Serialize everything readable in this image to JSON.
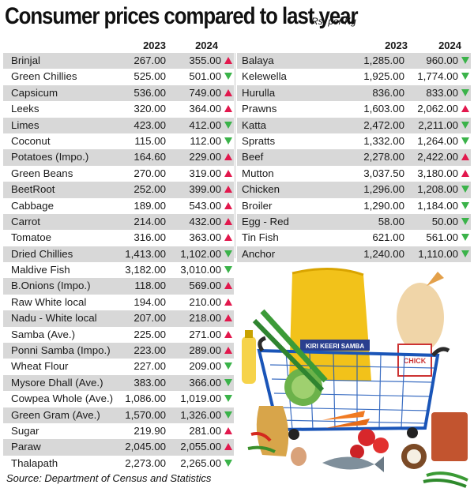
{
  "title": "Consumer prices compared to last year",
  "unit": "Rs. per Kg",
  "years": {
    "y1": "2023",
    "y2": "2024"
  },
  "colors": {
    "up": "#e2184d",
    "down": "#3bb34a",
    "shade": "#d8d8d8"
  },
  "left_rows": [
    {
      "name": "Brinjal",
      "v2023": "267.00",
      "v2024": "355.00",
      "trend": "up"
    },
    {
      "name": "Green Chillies",
      "v2023": "525.00",
      "v2024": "501.00",
      "trend": "down"
    },
    {
      "name": "Capsicum",
      "v2023": "536.00",
      "v2024": "749.00",
      "trend": "up"
    },
    {
      "name": "Leeks",
      "v2023": "320.00",
      "v2024": "364.00",
      "trend": "up"
    },
    {
      "name": "Limes",
      "v2023": "423.00",
      "v2024": "412.00",
      "trend": "down"
    },
    {
      "name": "Coconut",
      "v2023": "115.00",
      "v2024": "112.00",
      "trend": "down"
    },
    {
      "name": "Potatoes (Impo.)",
      "v2023": "164.60",
      "v2024": "229.00",
      "trend": "up"
    },
    {
      "name": "Green Beans",
      "v2023": "270.00",
      "v2024": "319.00",
      "trend": "up"
    },
    {
      "name": "BeetRoot",
      "v2023": "252.00",
      "v2024": "399.00",
      "trend": "up"
    },
    {
      "name": "Cabbage",
      "v2023": "189.00",
      "v2024": "543.00",
      "trend": "up"
    },
    {
      "name": "Carrot",
      "v2023": "214.00",
      "v2024": "432.00",
      "trend": "up"
    },
    {
      "name": "Tomatoe",
      "v2023": "316.00",
      "v2024": "363.00",
      "trend": "up"
    },
    {
      "name": "Dried Chillies",
      "v2023": "1,413.00",
      "v2024": "1,102.00",
      "trend": "down"
    },
    {
      "name": "Maldive Fish",
      "v2023": "3,182.00",
      "v2024": "3,010.00",
      "trend": "down"
    },
    {
      "name": "B.Onions (Impo.)",
      "v2023": "118.00",
      "v2024": "569.00",
      "trend": "up"
    },
    {
      "name": "Raw White local",
      "v2023": "194.00",
      "v2024": "210.00",
      "trend": "up"
    },
    {
      "name": "Nadu - White local",
      "v2023": "207.00",
      "v2024": "218.00",
      "trend": "up"
    },
    {
      "name": "Samba (Ave.)",
      "v2023": "225.00",
      "v2024": "271.00",
      "trend": "up"
    },
    {
      "name": "Ponni Samba (Impo.)",
      "v2023": "223.00",
      "v2024": "289.00",
      "trend": "up"
    },
    {
      "name": "Wheat Flour",
      "v2023": "227.00",
      "v2024": "209.00",
      "trend": "down"
    },
    {
      "name": "Mysore Dhall (Ave.)",
      "v2023": "383.00",
      "v2024": "366.00",
      "trend": "down"
    },
    {
      "name": "Cowpea Whole (Ave.)",
      "v2023": "1,086.00",
      "v2024": "1,019.00",
      "trend": "down"
    },
    {
      "name": "Green Gram (Ave.)",
      "v2023": "1,570.00",
      "v2024": "1,326.00",
      "trend": "down"
    },
    {
      "name": "Sugar",
      "v2023": "219.90",
      "v2024": "281.00",
      "trend": "up"
    },
    {
      "name": "Paraw",
      "v2023": "2,045.00",
      "v2024": "2,055.00",
      "trend": "up"
    },
    {
      "name": "Thalapath",
      "v2023": "2,273.00",
      "v2024": "2,265.00",
      "trend": "down"
    }
  ],
  "right_rows": [
    {
      "name": "Balaya",
      "v2023": "1,285.00",
      "v2024": "960.00",
      "trend": "down"
    },
    {
      "name": "Kelewella",
      "v2023": "1,925.00",
      "v2024": "1,774.00",
      "trend": "down"
    },
    {
      "name": "Hurulla",
      "v2023": "836.00",
      "v2024": "833.00",
      "trend": "down"
    },
    {
      "name": "Prawns",
      "v2023": "1,603.00",
      "v2024": "2,062.00",
      "trend": "up"
    },
    {
      "name": "Katta",
      "v2023": "2,472.00",
      "v2024": "2,211.00",
      "trend": "down"
    },
    {
      "name": "Spratts",
      "v2023": "1,332.00",
      "v2024": "1,264.00",
      "trend": "down"
    },
    {
      "name": "Beef",
      "v2023": "2,278.00",
      "v2024": "2,422.00",
      "trend": "up"
    },
    {
      "name": "Mutton",
      "v2023": "3,037.50",
      "v2024": "3,180.00",
      "trend": "up"
    },
    {
      "name": "Chicken",
      "v2023": "1,296.00",
      "v2024": "1,208.00",
      "trend": "down"
    },
    {
      "name": "Broiler",
      "v2023": "1,290.00",
      "v2024": "1,184.00",
      "trend": "down"
    },
    {
      "name": "Egg - Red",
      "v2023": "58.00",
      "v2024": "50.00",
      "trend": "down"
    },
    {
      "name": "Tin Fish",
      "v2023": "621.00",
      "v2024": "561.00",
      "trend": "down"
    },
    {
      "name": "Anchor",
      "v2023": "1,240.00",
      "v2024": "1,110.00",
      "trend": "down"
    }
  ],
  "illustration": {
    "icon": "grocery-basket-illustration",
    "bag_label": "KIRI KEERI SAMBA",
    "pack_label": "CHICK"
  },
  "source": "Source: Department of Census and Statistics"
}
